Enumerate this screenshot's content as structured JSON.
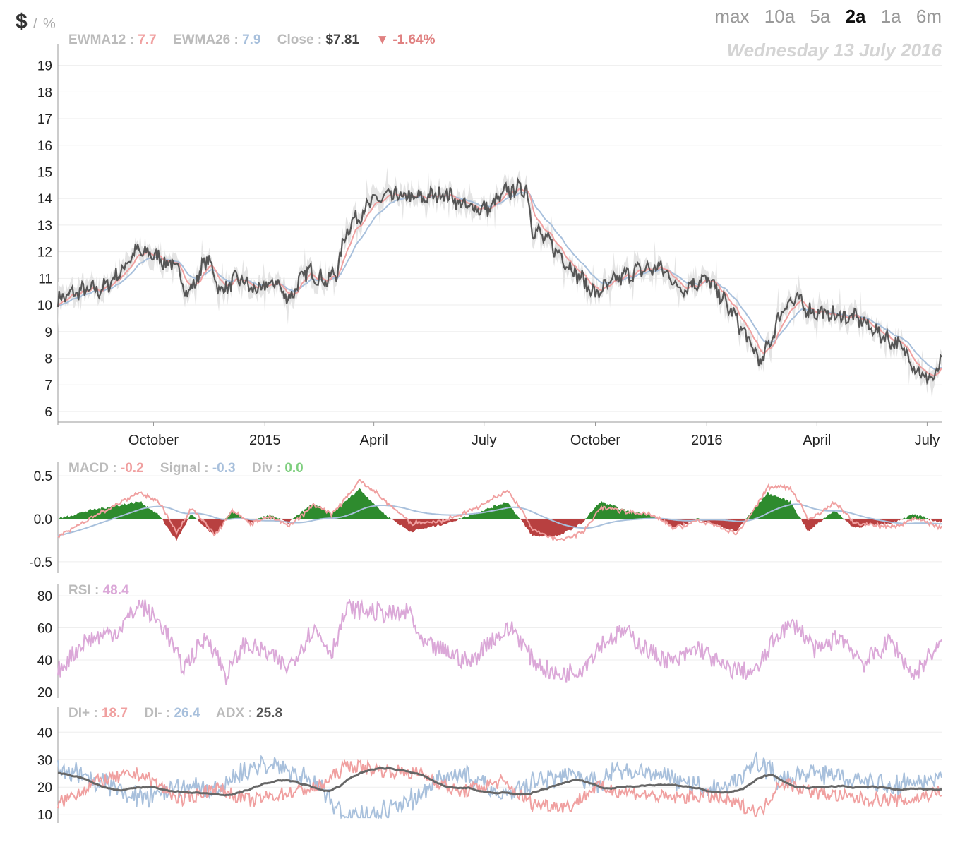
{
  "header": {
    "unit_primary": "$",
    "unit_separator": "/",
    "unit_secondary": "%",
    "ranges": [
      "max",
      "10a",
      "5a",
      "2a",
      "1a",
      "6m"
    ],
    "active_range": "2a",
    "date": "Wednesday 13 July 2016"
  },
  "legends": {
    "price": {
      "ewma12_label": "EWMA12 :",
      "ewma12_value": "7.7",
      "ewma26_label": "EWMA26 :",
      "ewma26_value": "7.9",
      "close_label": "Close :",
      "close_value": "$7.81",
      "change_arrow": "▼",
      "change_value": "-1.64%"
    },
    "macd": {
      "macd_label": "MACD :",
      "macd_value": "-0.2",
      "signal_label": "Signal :",
      "signal_value": "-0.3",
      "div_label": "Div :",
      "div_value": "0.0"
    },
    "rsi": {
      "rsi_label": "RSI :",
      "rsi_value": "48.4"
    },
    "dmi": {
      "diplus_label": "DI+ :",
      "diplus_value": "18.7",
      "diminus_label": "DI- :",
      "diminus_value": "26.4",
      "adx_label": "ADX :",
      "adx_value": "25.8"
    }
  },
  "colors": {
    "price": "#555555",
    "band": "#e4e4e4",
    "ewma12": "#f0a0a0",
    "ewma26": "#a8c0dc",
    "macd": "#f0a0a0",
    "signal": "#a8c0dc",
    "div_pos": "#2e8b2e",
    "div_neg": "#b84040",
    "rsi": "#dba8d8",
    "diplus": "#f0a0a0",
    "diminus": "#a8c0dc",
    "adx": "#666666",
    "grid": "#eeeeee",
    "change_neg": "#e08080"
  },
  "chart_data": [
    {
      "id": "price",
      "type": "line",
      "x_domain": [
        "2014-07-14",
        "2016-07-13"
      ],
      "ylim": [
        5.6,
        19.6
      ],
      "y_ticks": [
        6,
        7,
        8,
        9,
        10,
        11,
        12,
        13,
        14,
        15,
        16,
        17,
        18,
        19
      ],
      "x_ticks": [
        {
          "date": "2014-10-01",
          "label": "October"
        },
        {
          "date": "2015-01-01",
          "label": "2015"
        },
        {
          "date": "2015-04-01",
          "label": "April"
        },
        {
          "date": "2015-07-01",
          "label": "July"
        },
        {
          "date": "2015-10-01",
          "label": "October"
        },
        {
          "date": "2016-01-01",
          "label": "2016"
        },
        {
          "date": "2016-04-01",
          "label": "April"
        },
        {
          "date": "2016-07-01",
          "label": "July"
        }
      ],
      "grid": true,
      "close_anchors": [
        [
          "2014-07-14",
          10.2
        ],
        [
          "2014-07-31",
          10.5
        ],
        [
          "2014-08-20",
          10.6
        ],
        [
          "2014-09-05",
          11.3
        ],
        [
          "2014-09-15",
          12.0
        ],
        [
          "2014-09-30",
          11.9
        ],
        [
          "2014-10-20",
          11.4
        ],
        [
          "2014-10-30",
          10.4
        ],
        [
          "2014-11-15",
          11.8
        ],
        [
          "2014-11-25",
          10.5
        ],
        [
          "2014-12-10",
          11.0
        ],
        [
          "2014-12-25",
          10.5
        ],
        [
          "2015-01-10",
          10.9
        ],
        [
          "2015-01-20",
          10.2
        ],
        [
          "2015-02-05",
          11.3
        ],
        [
          "2015-02-20",
          10.9
        ],
        [
          "2015-03-01",
          11.2
        ],
        [
          "2015-03-10",
          12.9
        ],
        [
          "2015-03-31",
          13.9
        ],
        [
          "2015-04-15",
          14.1
        ],
        [
          "2015-05-10",
          14.0
        ],
        [
          "2015-05-31",
          14.2
        ],
        [
          "2015-06-15",
          13.7
        ],
        [
          "2015-07-05",
          13.6
        ],
        [
          "2015-07-20",
          14.3
        ],
        [
          "2015-08-05",
          14.4
        ],
        [
          "2015-08-10",
          12.9
        ],
        [
          "2015-08-25",
          12.3
        ],
        [
          "2015-09-15",
          11.2
        ],
        [
          "2015-10-01",
          10.4
        ],
        [
          "2015-10-20",
          11.0
        ],
        [
          "2015-11-05",
          11.3
        ],
        [
          "2015-11-25",
          11.4
        ],
        [
          "2015-12-10",
          10.6
        ],
        [
          "2015-12-31",
          11.0
        ],
        [
          "2016-01-10",
          10.5
        ],
        [
          "2016-01-25",
          9.5
        ],
        [
          "2016-02-15",
          7.8
        ],
        [
          "2016-03-05",
          10.0
        ],
        [
          "2016-03-15",
          10.2
        ],
        [
          "2016-03-25",
          9.8
        ],
        [
          "2016-04-15",
          9.6
        ],
        [
          "2016-05-05",
          9.5
        ],
        [
          "2016-05-20",
          9.0
        ],
        [
          "2016-06-10",
          8.4
        ],
        [
          "2016-06-20",
          7.8
        ],
        [
          "2016-06-25",
          7.4
        ],
        [
          "2016-07-05",
          7.2
        ],
        [
          "2016-07-13",
          7.81
        ]
      ]
    },
    {
      "id": "macd",
      "type": "line",
      "ylim": [
        -0.6,
        0.6
      ],
      "y_ticks": [
        0.5,
        0.0,
        -0.5
      ],
      "y_tick_labels": [
        "0.5",
        "0.0",
        "-0.5"
      ],
      "div_anchors": [
        [
          "2014-07-14",
          0.0
        ],
        [
          "2014-08-10",
          0.1
        ],
        [
          "2014-09-20",
          0.2
        ],
        [
          "2014-10-05",
          0.05
        ],
        [
          "2014-10-20",
          -0.25
        ],
        [
          "2014-11-01",
          0.05
        ],
        [
          "2014-11-20",
          -0.2
        ],
        [
          "2014-12-05",
          0.1
        ],
        [
          "2014-12-20",
          -0.05
        ],
        [
          "2015-01-05",
          0.05
        ],
        [
          "2015-01-20",
          -0.05
        ],
        [
          "2015-02-10",
          0.18
        ],
        [
          "2015-02-25",
          0.05
        ],
        [
          "2015-03-20",
          0.35
        ],
        [
          "2015-04-10",
          0.05
        ],
        [
          "2015-05-01",
          -0.15
        ],
        [
          "2015-06-01",
          -0.05
        ],
        [
          "2015-07-01",
          0.1
        ],
        [
          "2015-07-20",
          0.2
        ],
        [
          "2015-08-10",
          -0.2
        ],
        [
          "2015-09-01",
          -0.2
        ],
        [
          "2015-09-20",
          -0.05
        ],
        [
          "2015-10-05",
          0.2
        ],
        [
          "2015-10-25",
          0.1
        ],
        [
          "2015-11-15",
          0.05
        ],
        [
          "2015-12-05",
          -0.1
        ],
        [
          "2015-12-25",
          0.0
        ],
        [
          "2016-01-25",
          -0.15
        ],
        [
          "2016-02-20",
          0.3
        ],
        [
          "2016-03-10",
          0.2
        ],
        [
          "2016-03-25",
          -0.15
        ],
        [
          "2016-04-15",
          0.1
        ],
        [
          "2016-05-01",
          -0.1
        ],
        [
          "2016-06-01",
          -0.05
        ],
        [
          "2016-06-20",
          0.05
        ],
        [
          "2016-07-13",
          -0.05
        ]
      ]
    },
    {
      "id": "rsi",
      "type": "line",
      "ylim": [
        18,
        84
      ],
      "y_ticks": [
        20,
        40,
        60,
        80
      ],
      "rsi_anchors": [
        [
          "2014-07-14",
          33
        ],
        [
          "2014-08-05",
          52
        ],
        [
          "2014-09-01",
          58
        ],
        [
          "2014-09-20",
          75
        ],
        [
          "2014-10-10",
          60
        ],
        [
          "2014-10-25",
          35
        ],
        [
          "2014-11-15",
          55
        ],
        [
          "2014-11-30",
          30
        ],
        [
          "2014-12-15",
          50
        ],
        [
          "2015-01-01",
          45
        ],
        [
          "2015-01-20",
          35
        ],
        [
          "2015-02-10",
          60
        ],
        [
          "2015-02-25",
          45
        ],
        [
          "2015-03-10",
          72
        ],
        [
          "2015-04-01",
          70
        ],
        [
          "2015-04-20",
          68
        ],
        [
          "2015-05-01",
          70
        ],
        [
          "2015-05-10",
          50
        ],
        [
          "2015-06-01",
          45
        ],
        [
          "2015-06-20",
          38
        ],
        [
          "2015-07-05",
          52
        ],
        [
          "2015-07-25",
          60
        ],
        [
          "2015-08-10",
          40
        ],
        [
          "2015-08-30",
          30
        ],
        [
          "2015-09-20",
          35
        ],
        [
          "2015-10-05",
          50
        ],
        [
          "2015-10-25",
          58
        ],
        [
          "2015-11-15",
          45
        ],
        [
          "2015-12-05",
          38
        ],
        [
          "2015-12-25",
          48
        ],
        [
          "2016-01-15",
          35
        ],
        [
          "2016-02-10",
          32
        ],
        [
          "2016-03-01",
          58
        ],
        [
          "2016-03-15",
          62
        ],
        [
          "2016-04-01",
          45
        ],
        [
          "2016-04-20",
          55
        ],
        [
          "2016-05-10",
          38
        ],
        [
          "2016-06-01",
          52
        ],
        [
          "2016-06-20",
          30
        ],
        [
          "2016-07-05",
          45
        ],
        [
          "2016-07-13",
          48.4
        ]
      ]
    },
    {
      "id": "dmi",
      "type": "line",
      "ylim": [
        8,
        47
      ],
      "y_ticks": [
        10,
        20,
        30,
        40
      ],
      "diplus_anchors": [
        [
          "2014-07-14",
          14
        ],
        [
          "2014-08-15",
          22
        ],
        [
          "2014-09-20",
          25
        ],
        [
          "2014-10-25",
          15
        ],
        [
          "2014-11-20",
          20
        ],
        [
          "2014-12-20",
          15
        ],
        [
          "2015-01-20",
          18
        ],
        [
          "2015-02-15",
          20
        ],
        [
          "2015-03-10",
          28
        ],
        [
          "2015-04-10",
          26
        ],
        [
          "2015-05-10",
          25
        ],
        [
          "2015-06-10",
          18
        ],
        [
          "2015-07-15",
          22
        ],
        [
          "2015-08-10",
          14
        ],
        [
          "2015-09-10",
          13
        ],
        [
          "2015-10-01",
          20
        ],
        [
          "2015-11-01",
          18
        ],
        [
          "2015-12-01",
          16
        ],
        [
          "2016-01-01",
          17
        ],
        [
          "2016-02-01",
          13
        ],
        [
          "2016-02-15",
          11
        ],
        [
          "2016-03-01",
          22
        ],
        [
          "2016-04-01",
          18
        ],
        [
          "2016-05-01",
          16
        ],
        [
          "2016-06-15",
          15
        ],
        [
          "2016-07-13",
          18.7
        ]
      ]
    }
  ]
}
